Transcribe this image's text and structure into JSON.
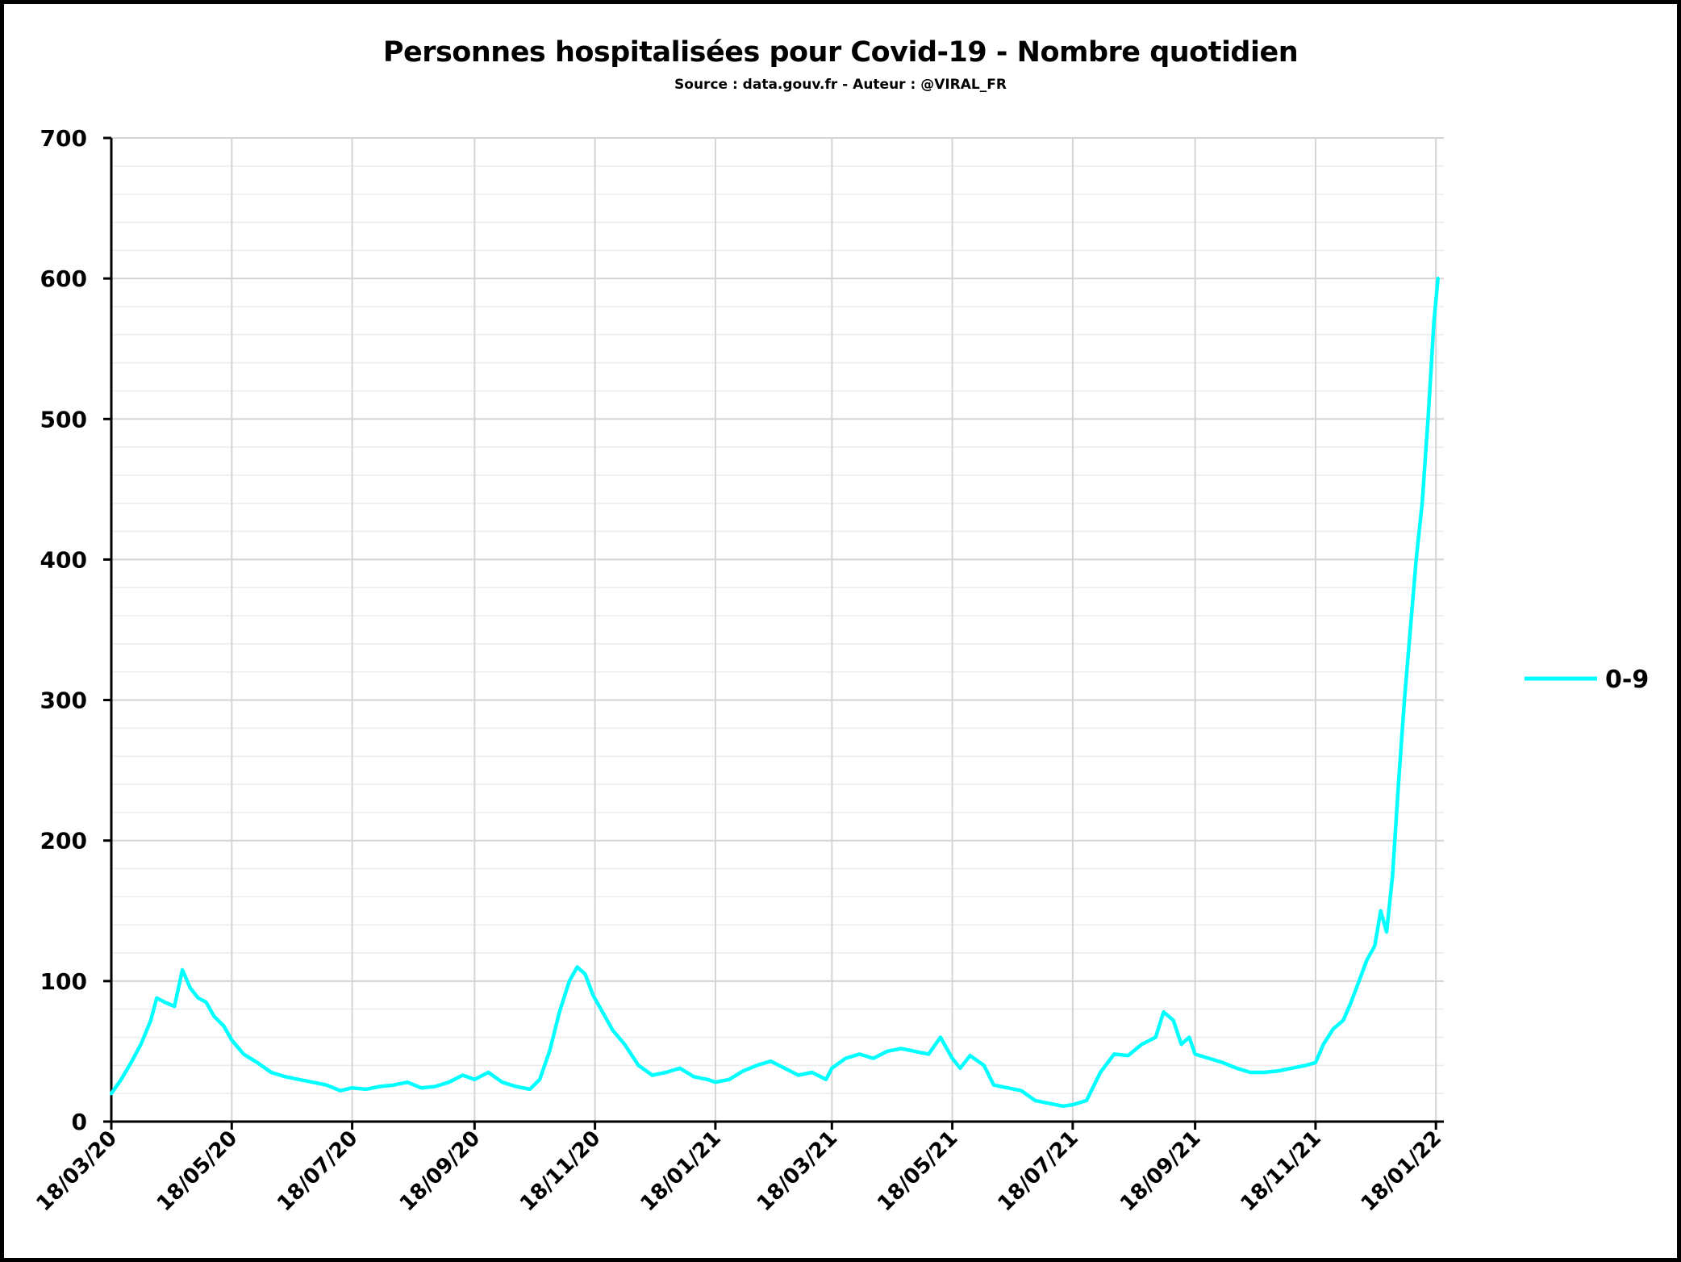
{
  "chart_data": {
    "type": "line",
    "title": "Personnes hospitalisées pour Covid-19 - Nombre quotidien",
    "subtitle": "Source : data.gouv.fr - Auteur : @VIRAL_FR",
    "xlabel": "",
    "ylabel": "",
    "ylim": [
      0,
      700
    ],
    "yticks": [
      0,
      100,
      200,
      300,
      400,
      500,
      600,
      700
    ],
    "yminor_step": 20,
    "xlim": [
      "2020-03-18",
      "2022-01-22"
    ],
    "xticks": [
      {
        "date": "2020-03-18",
        "label": "18/03/20"
      },
      {
        "date": "2020-05-18",
        "label": "18/05/20"
      },
      {
        "date": "2020-07-18",
        "label": "18/07/20"
      },
      {
        "date": "2020-09-18",
        "label": "18/09/20"
      },
      {
        "date": "2020-11-18",
        "label": "18/11/20"
      },
      {
        "date": "2021-01-18",
        "label": "18/01/21"
      },
      {
        "date": "2021-03-18",
        "label": "18/03/21"
      },
      {
        "date": "2021-05-18",
        "label": "18/05/21"
      },
      {
        "date": "2021-07-18",
        "label": "18/07/21"
      },
      {
        "date": "2021-09-18",
        "label": "18/09/21"
      },
      {
        "date": "2021-11-18",
        "label": "18/11/21"
      },
      {
        "date": "2022-01-18",
        "label": "18/01/22"
      }
    ],
    "grid": true,
    "legend": {
      "position": "right"
    },
    "series": [
      {
        "name": "0-9",
        "color": "#00ffff",
        "points": [
          [
            "2020-03-18",
            20
          ],
          [
            "2020-03-23",
            30
          ],
          [
            "2020-03-28",
            42
          ],
          [
            "2020-04-02",
            55
          ],
          [
            "2020-04-07",
            72
          ],
          [
            "2020-04-10",
            88
          ],
          [
            "2020-04-14",
            85
          ],
          [
            "2020-04-19",
            82
          ],
          [
            "2020-04-23",
            108
          ],
          [
            "2020-04-27",
            95
          ],
          [
            "2020-05-01",
            88
          ],
          [
            "2020-05-05",
            85
          ],
          [
            "2020-05-09",
            75
          ],
          [
            "2020-05-14",
            68
          ],
          [
            "2020-05-18",
            58
          ],
          [
            "2020-05-24",
            48
          ],
          [
            "2020-05-31",
            42
          ],
          [
            "2020-06-07",
            35
          ],
          [
            "2020-06-14",
            32
          ],
          [
            "2020-06-21",
            30
          ],
          [
            "2020-06-28",
            28
          ],
          [
            "2020-07-05",
            26
          ],
          [
            "2020-07-12",
            22
          ],
          [
            "2020-07-18",
            24
          ],
          [
            "2020-07-25",
            23
          ],
          [
            "2020-08-01",
            25
          ],
          [
            "2020-08-08",
            26
          ],
          [
            "2020-08-15",
            28
          ],
          [
            "2020-08-22",
            24
          ],
          [
            "2020-08-29",
            25
          ],
          [
            "2020-09-05",
            28
          ],
          [
            "2020-09-12",
            33
          ],
          [
            "2020-09-18",
            30
          ],
          [
            "2020-09-25",
            35
          ],
          [
            "2020-10-02",
            28
          ],
          [
            "2020-10-09",
            25
          ],
          [
            "2020-10-16",
            23
          ],
          [
            "2020-10-21",
            30
          ],
          [
            "2020-10-26",
            50
          ],
          [
            "2020-10-31",
            78
          ],
          [
            "2020-11-05",
            100
          ],
          [
            "2020-11-09",
            110
          ],
          [
            "2020-11-13",
            105
          ],
          [
            "2020-11-17",
            90
          ],
          [
            "2020-11-21",
            80
          ],
          [
            "2020-11-27",
            65
          ],
          [
            "2020-12-03",
            55
          ],
          [
            "2020-12-10",
            40
          ],
          [
            "2020-12-17",
            33
          ],
          [
            "2020-12-24",
            35
          ],
          [
            "2020-12-31",
            38
          ],
          [
            "2021-01-07",
            32
          ],
          [
            "2021-01-14",
            30
          ],
          [
            "2021-01-18",
            28
          ],
          [
            "2021-01-25",
            30
          ],
          [
            "2021-02-01",
            36
          ],
          [
            "2021-02-08",
            40
          ],
          [
            "2021-02-15",
            43
          ],
          [
            "2021-02-22",
            38
          ],
          [
            "2021-03-01",
            33
          ],
          [
            "2021-03-08",
            35
          ],
          [
            "2021-03-15",
            30
          ],
          [
            "2021-03-18",
            38
          ],
          [
            "2021-03-25",
            45
          ],
          [
            "2021-04-01",
            48
          ],
          [
            "2021-04-08",
            45
          ],
          [
            "2021-04-15",
            50
          ],
          [
            "2021-04-22",
            52
          ],
          [
            "2021-04-29",
            50
          ],
          [
            "2021-05-06",
            48
          ],
          [
            "2021-05-12",
            60
          ],
          [
            "2021-05-18",
            45
          ],
          [
            "2021-05-22",
            38
          ],
          [
            "2021-05-27",
            47
          ],
          [
            "2021-06-03",
            40
          ],
          [
            "2021-06-08",
            26
          ],
          [
            "2021-06-15",
            24
          ],
          [
            "2021-06-22",
            22
          ],
          [
            "2021-06-29",
            15
          ],
          [
            "2021-07-06",
            13
          ],
          [
            "2021-07-13",
            11
          ],
          [
            "2021-07-18",
            12
          ],
          [
            "2021-07-25",
            15
          ],
          [
            "2021-08-01",
            35
          ],
          [
            "2021-08-08",
            48
          ],
          [
            "2021-08-15",
            47
          ],
          [
            "2021-08-22",
            55
          ],
          [
            "2021-08-29",
            60
          ],
          [
            "2021-09-02",
            78
          ],
          [
            "2021-09-07",
            72
          ],
          [
            "2021-09-11",
            55
          ],
          [
            "2021-09-15",
            60
          ],
          [
            "2021-09-18",
            48
          ],
          [
            "2021-09-25",
            45
          ],
          [
            "2021-10-02",
            42
          ],
          [
            "2021-10-09",
            38
          ],
          [
            "2021-10-16",
            35
          ],
          [
            "2021-10-23",
            35
          ],
          [
            "2021-10-30",
            36
          ],
          [
            "2021-11-06",
            38
          ],
          [
            "2021-11-13",
            40
          ],
          [
            "2021-11-18",
            42
          ],
          [
            "2021-11-22",
            55
          ],
          [
            "2021-11-27",
            66
          ],
          [
            "2021-12-02",
            72
          ],
          [
            "2021-12-06",
            85
          ],
          [
            "2021-12-10",
            100
          ],
          [
            "2021-12-14",
            115
          ],
          [
            "2021-12-18",
            125
          ],
          [
            "2021-12-21",
            150
          ],
          [
            "2021-12-24",
            135
          ],
          [
            "2021-12-27",
            175
          ],
          [
            "2021-12-30",
            240
          ],
          [
            "2022-01-02",
            300
          ],
          [
            "2022-01-05",
            350
          ],
          [
            "2022-01-08",
            400
          ],
          [
            "2022-01-11",
            440
          ],
          [
            "2022-01-14",
            500
          ],
          [
            "2022-01-17",
            570
          ],
          [
            "2022-01-19",
            600
          ]
        ]
      }
    ]
  }
}
